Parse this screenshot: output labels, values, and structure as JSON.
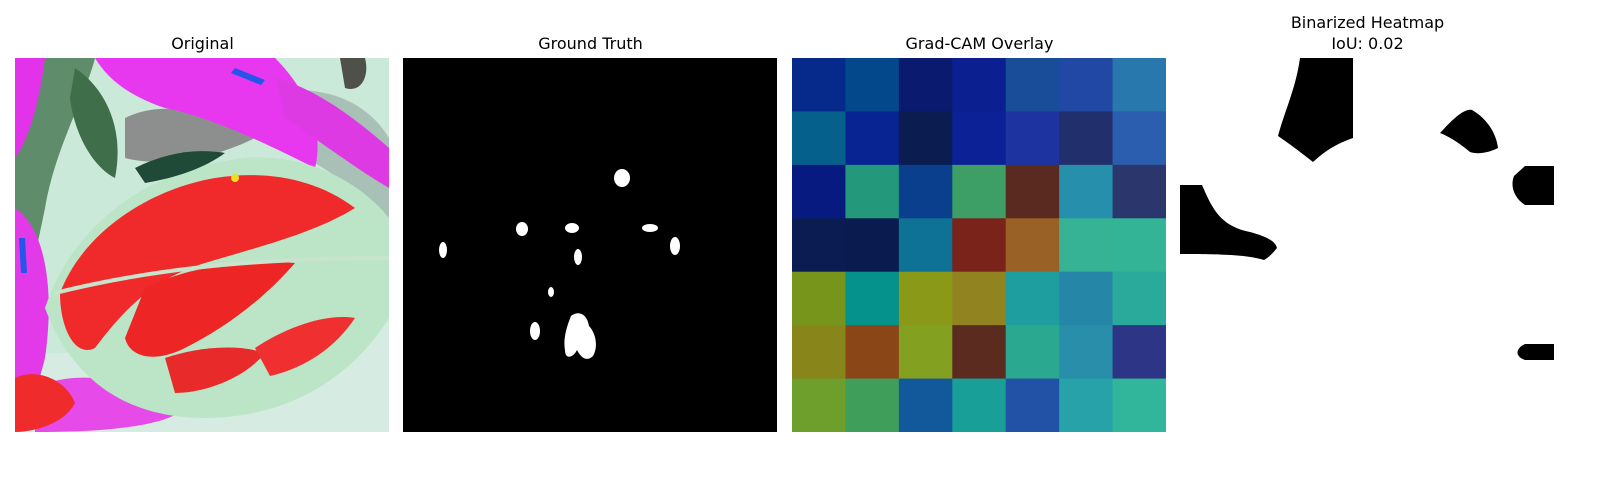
{
  "panels": [
    {
      "title": "Original"
    },
    {
      "title": "Ground Truth"
    },
    {
      "title": "Grad-CAM Overlay"
    },
    {
      "title": "Binarized Heatmap",
      "subtitle": "IoU: 0.02"
    }
  ],
  "chart_data": {
    "type": "heatmap",
    "title": "Grad-CAM Overlay",
    "rows": 7,
    "cols": 7,
    "colors": [
      [
        "#062a8b",
        "#03488a",
        "#0a1a6e",
        "#0c1f90",
        "#1a4d99",
        "#2248a5",
        "#2877ad"
      ],
      [
        "#06608c",
        "#082492",
        "#0a1c50",
        "#0c2195",
        "#1d34a0",
        "#222f6d",
        "#2b5eae"
      ],
      [
        "#061a80",
        "#23987a",
        "#093f8d",
        "#3d9f65",
        "#5a2a21",
        "#268fab",
        "#2b376c"
      ],
      [
        "#0a1c52",
        "#0a1b4f",
        "#0e7196",
        "#7a231a",
        "#9a6126",
        "#36b295",
        "#33b497"
      ],
      [
        "#77951a",
        "#05928c",
        "#8a9a18",
        "#918320",
        "#1f9e9f",
        "#2686a8",
        "#2aaa9b"
      ],
      [
        "#88861a",
        "#8b4617",
        "#84a020",
        "#5b2b20",
        "#2ba990",
        "#288ea9",
        "#2d3586"
      ],
      [
        "#6e9e2b",
        "#3f9f5a",
        "#11599a",
        "#179f98",
        "#2252a6",
        "#27a2a8",
        "#31b59b"
      ]
    ],
    "iou": 0.02
  }
}
